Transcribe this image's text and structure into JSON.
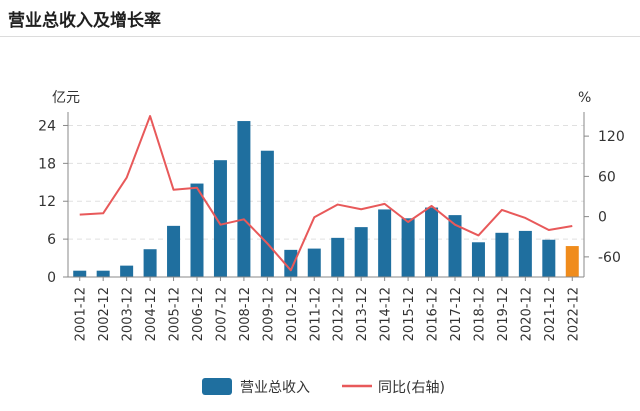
{
  "header": {
    "title": "营业总收入及增长率"
  },
  "chart_data": {
    "type": "bar+line",
    "title": "营业总收入及增长率",
    "categories": [
      "2001-12",
      "2002-12",
      "2003-12",
      "2004-12",
      "2005-12",
      "2006-12",
      "2007-12",
      "2008-12",
      "2009-12",
      "2010-12",
      "2011-12",
      "2012-12",
      "2013-12",
      "2014-12",
      "2015-12",
      "2016-12",
      "2017-12",
      "2018-12",
      "2019-12",
      "2020-12",
      "2021-12",
      "2022-12"
    ],
    "left_axis": {
      "unit": "亿元",
      "ticks": [
        0,
        6,
        12,
        18,
        24
      ],
      "ylim": [
        0,
        25.5
      ]
    },
    "right_axis": {
      "unit": "%",
      "ticks": [
        -60,
        0,
        60,
        120
      ],
      "ylim": [
        -90,
        150
      ]
    },
    "series": [
      {
        "name": "营业总收入",
        "type": "bar",
        "axis": "left",
        "color": "#1f6f9f",
        "highlight_color": "#f08c1c",
        "highlight_index": 21,
        "values": [
          1.0,
          1.0,
          1.8,
          4.4,
          8.1,
          14.8,
          18.5,
          24.7,
          20.0,
          4.3,
          4.5,
          6.2,
          7.9,
          10.7,
          9.3,
          11.0,
          9.8,
          5.5,
          7.0,
          7.3,
          5.9,
          4.9
        ]
      },
      {
        "name": "同比(右轴)",
        "type": "line",
        "axis": "right",
        "color": "#e8595a",
        "values": [
          3,
          5,
          58,
          150,
          40,
          43,
          -12,
          -4,
          -40,
          -80,
          -1,
          18,
          11,
          19,
          -8,
          16,
          -12,
          -28,
          10,
          -2,
          -20,
          -14
        ]
      }
    ],
    "legend": {
      "position": "bottom"
    }
  }
}
